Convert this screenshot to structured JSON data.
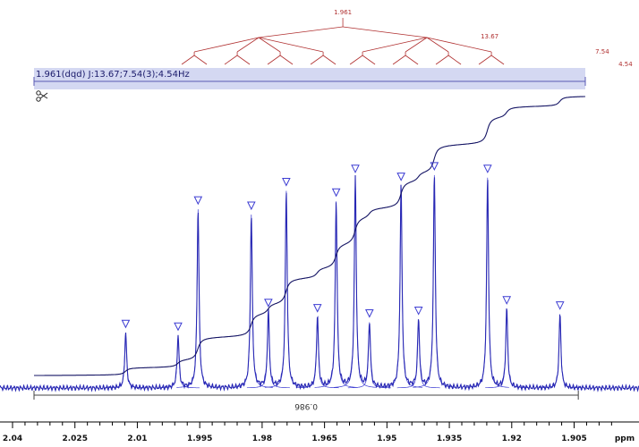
{
  "colors": {
    "spectrum": "#2828b4",
    "fit": "#3c3cd2",
    "integral": "#141464",
    "tree": "#b03030",
    "bar_fill": "#d4d8f2",
    "bar_line": "#5a5ab4",
    "axis": "#000000"
  },
  "multiplet": {
    "label": "1.961(dqd) J:13.67;7.54(3);4.54Hz",
    "shift": "1.961",
    "j_labels": [
      "13.67",
      "7.54",
      "4.54"
    ],
    "scissors_icon": "scissors-icon"
  },
  "integration": {
    "value": "0.986",
    "range": [
      2.04,
      1.904
    ]
  },
  "chart_data": {
    "type": "line",
    "title": "",
    "xlabel": "ppm",
    "ylabel": "",
    "x_reversed": true,
    "xlim": [
      2.04,
      1.895
    ],
    "ylim": [
      0,
      1
    ],
    "x_tick_labels": [
      "2.04",
      "2.025",
      "2.01",
      "1.995",
      "1.98",
      "1.965",
      "1.95",
      "1.935",
      "1.92",
      "1.905",
      "ppm"
    ],
    "x_ticks": [
      2.04,
      2.025,
      2.01,
      1.995,
      1.98,
      1.965,
      1.95,
      1.935,
      1.92,
      1.905
    ],
    "peaks": [
      {
        "ppm": 2.0128,
        "height": 0.21
      },
      {
        "ppm": 2.0002,
        "height": 0.2
      },
      {
        "ppm": 1.9954,
        "height": 0.68
      },
      {
        "ppm": 1.9826,
        "height": 0.66
      },
      {
        "ppm": 1.9785,
        "height": 0.29
      },
      {
        "ppm": 1.9742,
        "height": 0.75
      },
      {
        "ppm": 1.9667,
        "height": 0.27
      },
      {
        "ppm": 1.9622,
        "height": 0.71
      },
      {
        "ppm": 1.9576,
        "height": 0.8
      },
      {
        "ppm": 1.9542,
        "height": 0.25
      },
      {
        "ppm": 1.9466,
        "height": 0.77
      },
      {
        "ppm": 1.9424,
        "height": 0.26
      },
      {
        "ppm": 1.9386,
        "height": 0.81
      },
      {
        "ppm": 1.9258,
        "height": 0.8
      },
      {
        "ppm": 1.9212,
        "height": 0.3
      },
      {
        "ppm": 1.9084,
        "height": 0.28
      }
    ],
    "integral_curve": {
      "start": 0.03,
      "end": 0.98
    }
  }
}
